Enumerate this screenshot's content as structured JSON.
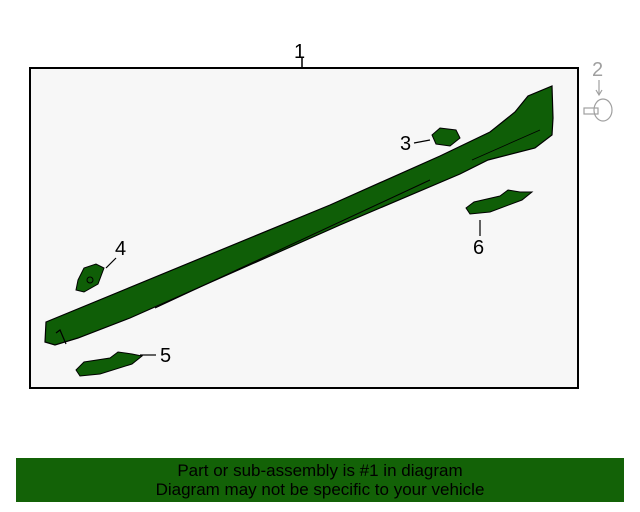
{
  "diagram": {
    "callouts": [
      {
        "number": "1",
        "highlighted": true
      },
      {
        "number": "2",
        "highlighted": false
      },
      {
        "number": "3",
        "highlighted": false
      },
      {
        "number": "4",
        "highlighted": false
      },
      {
        "number": "5",
        "highlighted": false
      },
      {
        "number": "6",
        "highlighted": false
      }
    ],
    "colors": {
      "part_fill": "#0f5e07",
      "panel_bg": "#f7f7f7",
      "inactive_part": "#a0a0a0"
    }
  },
  "banner": {
    "line1": "Part or sub-assembly is #1 in diagram",
    "line2": "Diagram may not be specific to your vehicle",
    "color": "#136207"
  }
}
